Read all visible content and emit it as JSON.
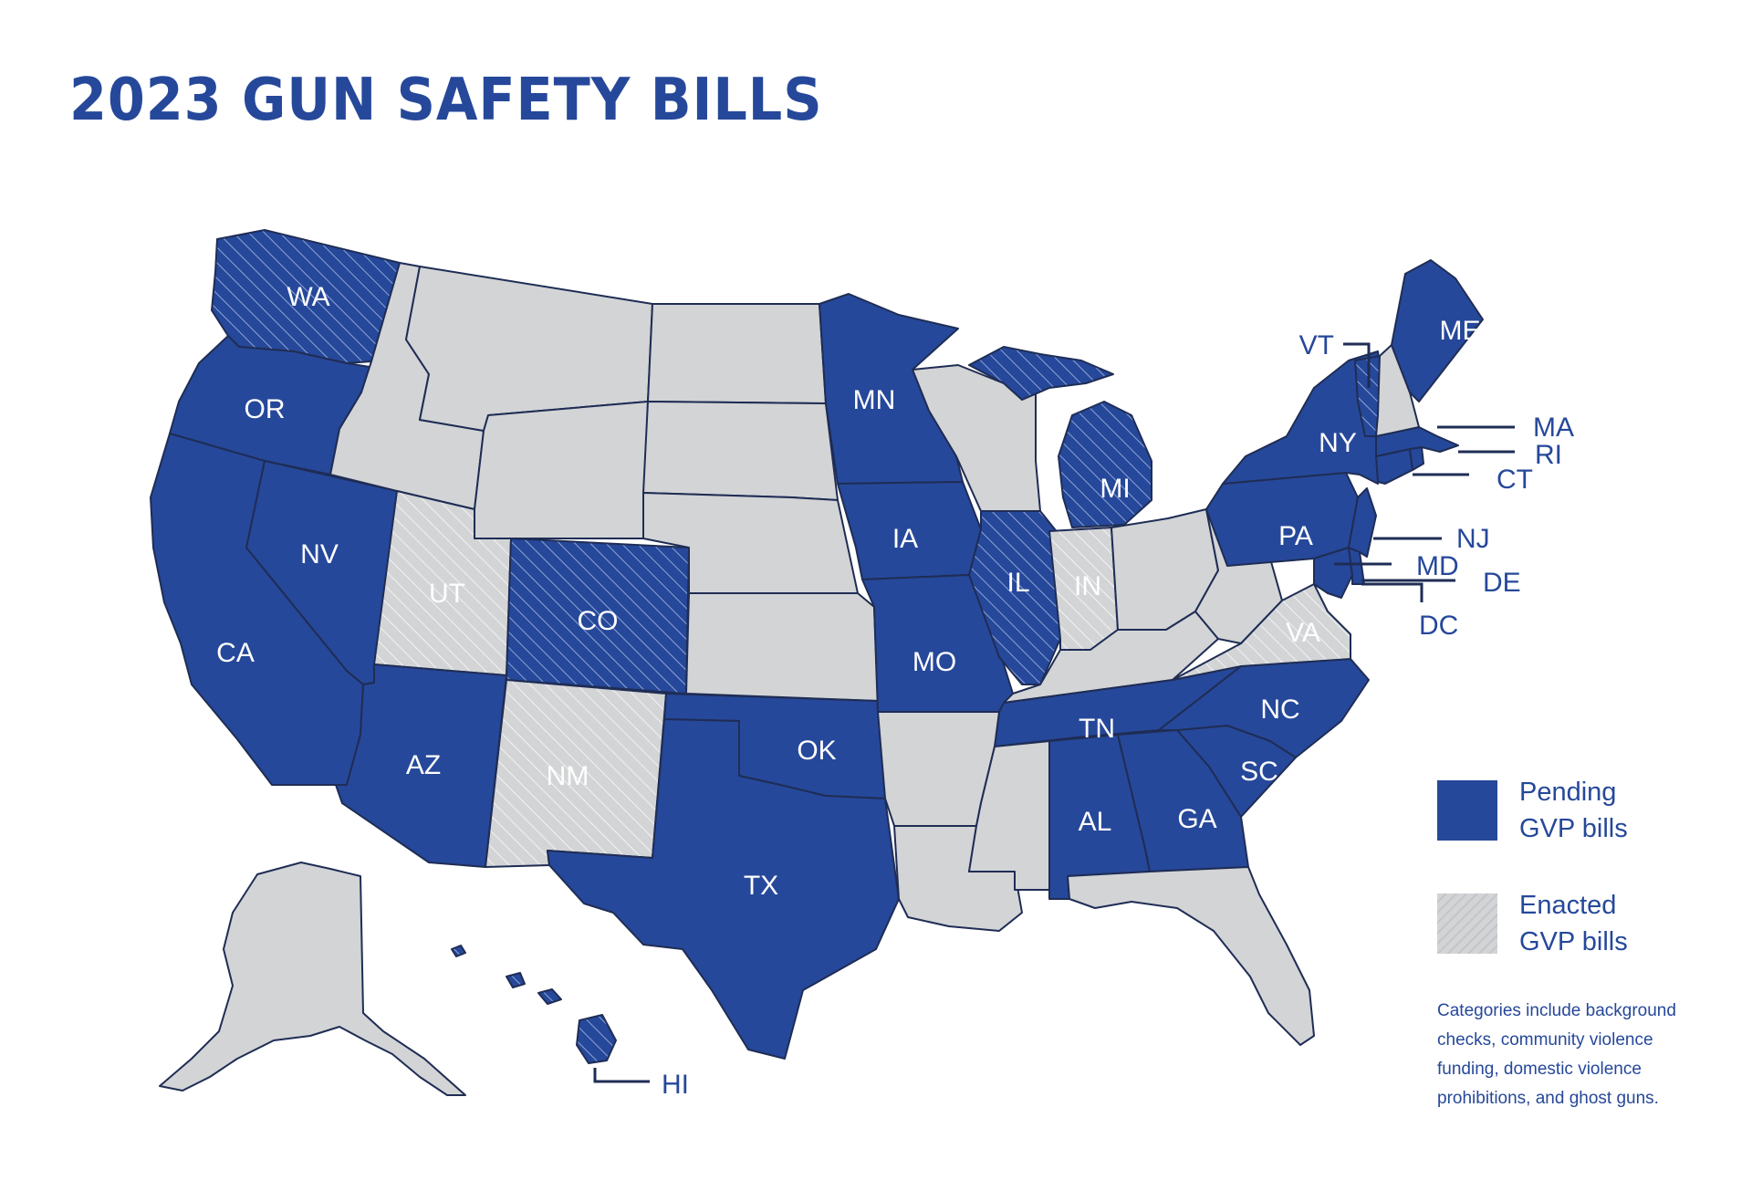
{
  "title": "2023 GUN SAFETY BILLS",
  "colors": {
    "pending": "#26489a",
    "enacted": "#d3d4d6",
    "none": "#d3d4d6",
    "border": "#1f2d55",
    "text": "#26489a"
  },
  "categories": {
    "pending": [
      "WA",
      "OR",
      "CA",
      "NV",
      "AZ",
      "CO",
      "TX",
      "OK",
      "MN",
      "IA",
      "MO",
      "IL",
      "MI",
      "TN",
      "AL",
      "GA",
      "SC",
      "NC",
      "NY",
      "PA",
      "NJ",
      "DE",
      "MD",
      "DC",
      "CT",
      "RI",
      "MA",
      "VT",
      "ME",
      "HI"
    ],
    "enacted": [
      "UT",
      "NM",
      "IN",
      "VA"
    ],
    "hatched": [
      "WA",
      "CO",
      "IL",
      "MI",
      "VT",
      "HI"
    ]
  },
  "labels": {
    "WA": "WA",
    "OR": "OR",
    "CA": "CA",
    "NV": "NV",
    "UT": "UT",
    "CO": "CO",
    "AZ": "AZ",
    "NM": "NM",
    "TX": "TX",
    "OK": "OK",
    "MN": "MN",
    "IA": "IA",
    "MO": "MO",
    "IL": "IL",
    "IN": "IN",
    "MI": "MI",
    "TN": "TN",
    "AL": "AL",
    "GA": "GA",
    "SC": "SC",
    "NC": "NC",
    "VA": "VA",
    "PA": "PA",
    "NY": "NY",
    "ME": "ME",
    "VT": "VT",
    "MA": "MA",
    "RI": "RI",
    "CT": "CT",
    "NJ": "NJ",
    "MD": "MD",
    "DE": "DE",
    "DC": "DC",
    "HI": "HI"
  },
  "legend": {
    "pending": "Pending GVP bills",
    "enacted": "Enacted GVP bills"
  },
  "note": "Categories include background checks, community violence funding, domestic violence prohibitions, and ghost guns."
}
